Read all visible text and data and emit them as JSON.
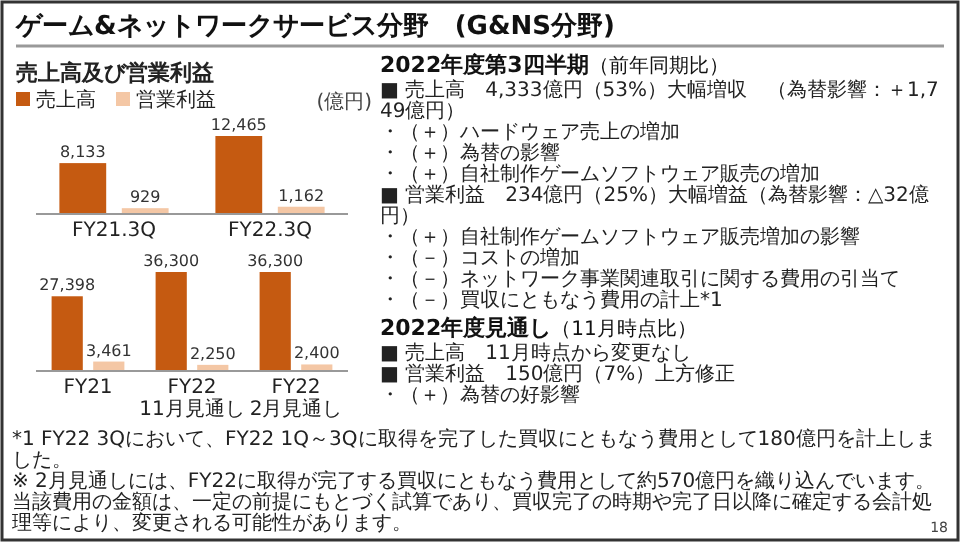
{
  "chart_data": [
    {
      "type": "other",
      "title": "ゲーム&ネットワークサービス分野　(G&NS分野)",
      "annotations": [
        "18"
      ]
    },
    {
      "type": "bar",
      "title": "売上高及び営業利益",
      "ylabel": "(億円)",
      "categories": [
        "FY21.3Q",
        "FY22.3Q"
      ],
      "legend": "top left",
      "tick_labels": "x",
      "series": [
        {
          "name": "売上高",
          "color": "#c55a11",
          "values": [
            8133,
            12465
          ],
          "value_labels": [
            "8,133",
            "12,465"
          ]
        },
        {
          "name": "営業利益",
          "color": "#f4c7a5",
          "values": [
            929,
            1162
          ],
          "value_labels": [
            "929",
            "1,162"
          ]
        }
      ]
    },
    {
      "type": "bar",
      "categories": [
        "FY21",
        "FY22\n11月見通し",
        "FY22\n2月見通し"
      ],
      "tick_labels": "x",
      "series": [
        {
          "color": "#c55a11",
          "values": [
            27398,
            36300,
            36300
          ],
          "value_labels": [
            "27,398",
            "36,300",
            "36,300"
          ]
        },
        {
          "color": "#f4c7a5",
          "values": [
            3461,
            2250,
            2400
          ],
          "value_labels": [
            "3,461",
            "2,250",
            "2,400"
          ]
        }
      ]
    },
    {
      "type": "other",
      "title": "2022年度第3四半期",
      "subtitle": "（前年同期比）",
      "annotations": [
        "■ 売上高　4,333億円（53%）大幅増収　（為替影響：＋1,749億円）",
        "・（＋）ハードウェア売上の増加",
        "・（＋）為替の影響",
        "・（＋）自社制作ゲームソフトウェア販売の増加",
        "■ 営業利益　234億円（25%）大幅増益（為替影響：△32億円）",
        "・（＋）自社制作ゲームソフトウェア販売増加の影響",
        "・（－）コストの増加",
        "・（－）ネットワーク事業関連取引に関する費用の引当て",
        "・（－）買収にともなう費用の計上*1"
      ]
    },
    {
      "type": "other",
      "title": "2022年度見通し",
      "subtitle": "（11月時点比）",
      "annotations": [
        "■ 売上高　11月時点から変更なし",
        "■ 営業利益　150億円（7%）上方修正",
        "・（＋）為替の好影響"
      ]
    },
    {
      "type": "other",
      "annotations": [
        "*1 FY22 3Qにおいて、FY22 1Q～3Qに取得を完了した買収にともなう費用として180億円を計上しました。",
        "※ 2月見通しには、FY22に取得が完了する買収にともなう費用として約570億円を織り込んでいます。当該費用の金額は、一定の前提にもとづく試算であり、買収完了の時期や完了日以降に確定する会計処理等により、変更される可能性があります。"
      ]
    }
  ]
}
